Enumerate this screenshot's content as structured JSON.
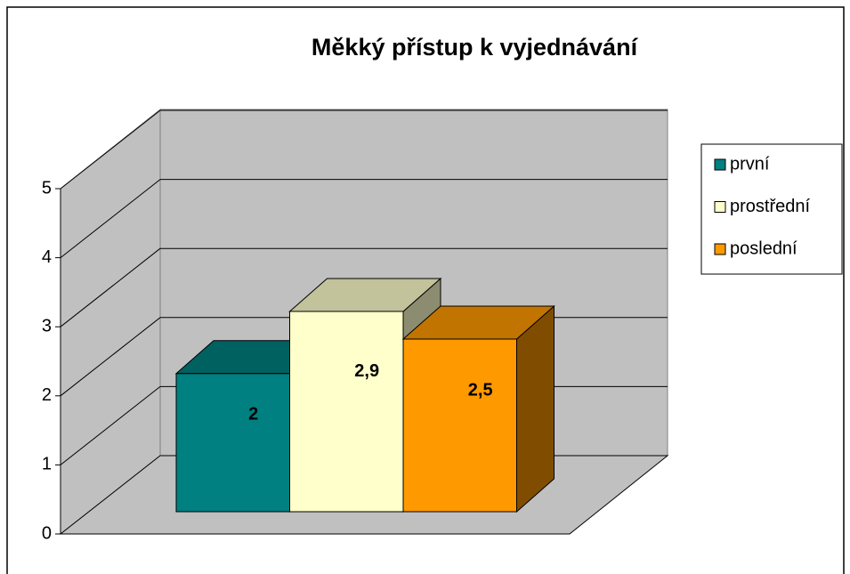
{
  "chart_data": {
    "type": "bar3d",
    "title": "Měkký přístup k vyjednávání",
    "series": [
      {
        "name": "první",
        "color": "#008080",
        "values": [
          2
        ]
      },
      {
        "name": "prostřední",
        "color": "#ffffcc",
        "values": [
          2.9
        ],
        "value_labels": [
          "2,9"
        ]
      },
      {
        "name": "poslední",
        "color": "#ff9900",
        "values": [
          2.5
        ],
        "value_labels": [
          "2,5"
        ]
      }
    ],
    "ylim": [
      0,
      5
    ],
    "yticks": [
      0,
      1,
      2,
      3,
      4,
      5
    ],
    "grid": true,
    "legend": "right"
  }
}
